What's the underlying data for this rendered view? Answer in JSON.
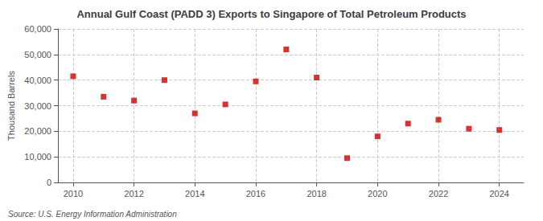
{
  "chart_data": {
    "type": "scatter",
    "title": "Annual Gulf Coast (PADD 3) Exports to Singapore of Total Petroleum Products",
    "ylabel": "Thousand Barrels",
    "annotations": [
      "Source: U.S. Energy Information Administration"
    ],
    "x": [
      2010,
      2011,
      2012,
      2013,
      2014,
      2015,
      2016,
      2017,
      2018,
      2019,
      2020,
      2021,
      2022,
      2023,
      2024
    ],
    "values": [
      41500,
      33500,
      32000,
      40000,
      27000,
      30500,
      39500,
      52000,
      41000,
      9500,
      18000,
      23000,
      24500,
      21000,
      20500
    ],
    "color": "#cc0000",
    "marker": "square",
    "xlim": [
      2009.5,
      2024.8
    ],
    "xticks": [
      2010,
      2012,
      2014,
      2016,
      2018,
      2020,
      2022,
      2024
    ],
    "ylim": [
      0,
      60000
    ],
    "yticks": [
      0,
      {
        "value": 10000,
        "label": "10,000"
      },
      {
        "value": 20000,
        "label": "20,000"
      },
      {
        "value": 30000,
        "label": "30,000"
      },
      {
        "value": 40000,
        "label": "40,000"
      },
      {
        "value": 50000,
        "label": "50,000"
      },
      {
        "value": 60000,
        "label": "60,000"
      }
    ],
    "grid": true
  }
}
